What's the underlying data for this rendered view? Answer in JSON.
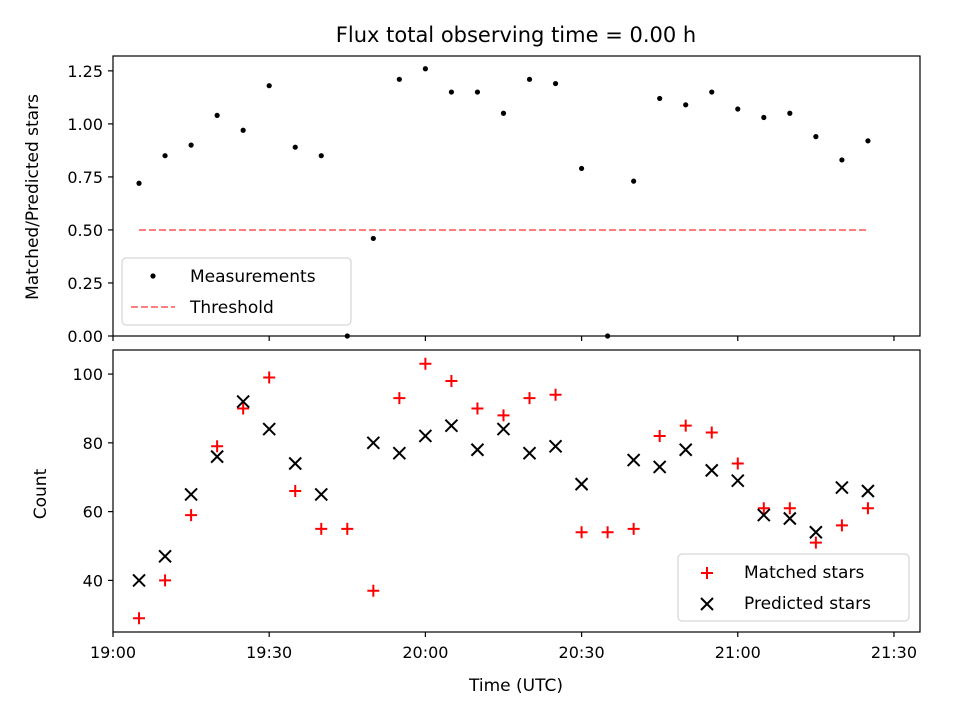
{
  "chart_data": [
    {
      "type": "scatter",
      "title": "Flux total observing time = 0.00 h",
      "xlabel": "",
      "ylabel": "Matched/Predicted stars",
      "ylim": [
        0.0,
        1.32
      ],
      "yticks": [
        "0.00",
        "0.25",
        "0.50",
        "0.75",
        "1.00",
        "1.25"
      ],
      "ytick_values": [
        0.0,
        0.25,
        0.5,
        0.75,
        1.0,
        1.25
      ],
      "legend_position": "lower-left",
      "grid": false,
      "series": [
        {
          "name": "Measurements",
          "marker": "dot",
          "color": "#000000",
          "values": [
            [
              "19:05",
              0.72
            ],
            [
              "19:10",
              0.85
            ],
            [
              "19:15",
              0.9
            ],
            [
              "19:20",
              1.04
            ],
            [
              "19:25",
              0.97
            ],
            [
              "19:30",
              1.18
            ],
            [
              "19:35",
              0.89
            ],
            [
              "19:40",
              0.85
            ],
            [
              "19:45",
              0.0
            ],
            [
              "19:50",
              0.46
            ],
            [
              "19:55",
              1.21
            ],
            [
              "20:00",
              1.26
            ],
            [
              "20:05",
              1.15
            ],
            [
              "20:10",
              1.15
            ],
            [
              "20:15",
              1.05
            ],
            [
              "20:20",
              1.21
            ],
            [
              "20:25",
              1.19
            ],
            [
              "20:30",
              0.79
            ],
            [
              "20:35",
              0.0
            ],
            [
              "20:40",
              0.73
            ],
            [
              "20:45",
              1.12
            ],
            [
              "20:50",
              1.09
            ],
            [
              "20:55",
              1.15
            ],
            [
              "21:00",
              1.07
            ],
            [
              "21:05",
              1.03
            ],
            [
              "21:10",
              1.05
            ],
            [
              "21:15",
              0.94
            ],
            [
              "21:20",
              0.83
            ],
            [
              "21:25",
              0.92
            ]
          ]
        },
        {
          "name": "Threshold",
          "marker": "dashed-line",
          "color": "#ff7f7f",
          "values": [
            [
              "19:05",
              0.5
            ],
            [
              "21:25",
              0.5
            ]
          ]
        }
      ]
    },
    {
      "type": "scatter",
      "title": "",
      "xlabel": "Time (UTC)",
      "ylabel": "Count",
      "ylim": [
        25,
        107
      ],
      "yticks": [
        "40",
        "60",
        "80",
        "100"
      ],
      "ytick_values": [
        40,
        60,
        80,
        100
      ],
      "xticks": [
        "19:00",
        "19:30",
        "20:00",
        "20:30",
        "21:00",
        "21:30"
      ],
      "legend_position": "lower-right",
      "grid": false,
      "series": [
        {
          "name": "Matched stars",
          "marker": "plus",
          "color": "#ff0000",
          "values": [
            [
              "19:05",
              29
            ],
            [
              "19:10",
              40
            ],
            [
              "19:15",
              59
            ],
            [
              "19:20",
              79
            ],
            [
              "19:25",
              90
            ],
            [
              "19:30",
              99
            ],
            [
              "19:35",
              66
            ],
            [
              "19:40",
              55
            ],
            [
              "19:45",
              55
            ],
            [
              "19:50",
              37
            ],
            [
              "19:55",
              93
            ],
            [
              "20:00",
              103
            ],
            [
              "20:05",
              98
            ],
            [
              "20:10",
              90
            ],
            [
              "20:15",
              88
            ],
            [
              "20:20",
              93
            ],
            [
              "20:25",
              94
            ],
            [
              "20:30",
              54
            ],
            [
              "20:35",
              54
            ],
            [
              "20:40",
              55
            ],
            [
              "20:45",
              82
            ],
            [
              "20:50",
              85
            ],
            [
              "20:55",
              83
            ],
            [
              "21:00",
              74
            ],
            [
              "21:05",
              61
            ],
            [
              "21:10",
              61
            ],
            [
              "21:15",
              51
            ],
            [
              "21:20",
              56
            ],
            [
              "21:25",
              61
            ]
          ]
        },
        {
          "name": "Predicted stars",
          "marker": "x",
          "color": "#000000",
          "values": [
            [
              "19:05",
              40
            ],
            [
              "19:10",
              47
            ],
            [
              "19:15",
              65
            ],
            [
              "19:20",
              76
            ],
            [
              "19:25",
              92
            ],
            [
              "19:30",
              84
            ],
            [
              "19:35",
              74
            ],
            [
              "19:40",
              65
            ],
            [
              "19:50",
              80
            ],
            [
              "19:55",
              77
            ],
            [
              "20:00",
              82
            ],
            [
              "20:05",
              85
            ],
            [
              "20:10",
              78
            ],
            [
              "20:15",
              84
            ],
            [
              "20:20",
              77
            ],
            [
              "20:25",
              79
            ],
            [
              "20:30",
              68
            ],
            [
              "20:40",
              75
            ],
            [
              "20:45",
              73
            ],
            [
              "20:50",
              78
            ],
            [
              "20:55",
              72
            ],
            [
              "21:00",
              69
            ],
            [
              "21:05",
              59
            ],
            [
              "21:10",
              58
            ],
            [
              "21:15",
              54
            ],
            [
              "21:20",
              67
            ],
            [
              "21:25",
              66
            ]
          ]
        }
      ]
    }
  ]
}
